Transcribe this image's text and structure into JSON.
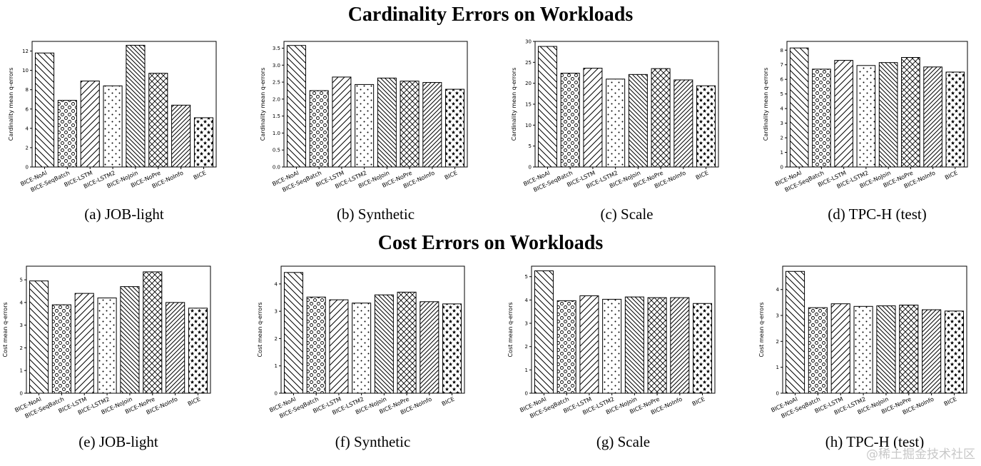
{
  "section_titles": {
    "top": "Cardinality Errors on Workloads",
    "bottom": "Cost Errors on Workloads"
  },
  "watermark": "@稀土掘金技术社区",
  "categories": [
    "BICE-NoAl",
    "BICE-SeqBatch",
    "BICE-LSTM",
    "BICE-LSTM2",
    "BICE-NoJoin",
    "BICE-NoPre",
    "BICE-NoInfo",
    "BICE"
  ],
  "patterns": [
    "backslash",
    "circles",
    "slash",
    "dots",
    "backslash-dense",
    "crosshatch",
    "slash-dense",
    "stars"
  ],
  "chart_data": [
    {
      "type": "bar",
      "caption": "(a)  JOB-light",
      "ylabel": "Cardinality mean q-errors",
      "ylim": [
        0,
        13
      ],
      "yticks": [
        0,
        2,
        4,
        6,
        8,
        10,
        12
      ],
      "tick_decimals": 0,
      "values": [
        11.8,
        6.9,
        8.9,
        8.4,
        12.6,
        9.7,
        6.4,
        5.1
      ]
    },
    {
      "type": "bar",
      "caption": "(b)  Synthetic",
      "ylabel": "Cardinality mean q-errors",
      "ylim": [
        0,
        3.7
      ],
      "yticks": [
        0.0,
        0.5,
        1.0,
        1.5,
        2.0,
        2.5,
        3.0,
        3.5
      ],
      "tick_decimals": 1,
      "values": [
        3.58,
        2.25,
        2.65,
        2.43,
        2.62,
        2.53,
        2.49,
        2.29
      ]
    },
    {
      "type": "bar",
      "caption": "(c)  Scale",
      "ylabel": "Cardinality mean q-errors",
      "ylim": [
        0,
        30
      ],
      "yticks": [
        0,
        5,
        10,
        15,
        20,
        25,
        30
      ],
      "tick_decimals": 0,
      "values": [
        28.8,
        22.4,
        23.6,
        21.0,
        22.1,
        23.5,
        20.8,
        19.4
      ]
    },
    {
      "type": "bar",
      "caption": "(d)  TPC-H (test)",
      "ylabel": "Cardinality mean q-errors",
      "ylim": [
        0,
        8.6
      ],
      "yticks": [
        0,
        1,
        2,
        3,
        4,
        5,
        6,
        7,
        8
      ],
      "tick_decimals": 0,
      "values": [
        8.15,
        6.7,
        7.3,
        6.95,
        7.15,
        7.5,
        6.85,
        6.5
      ]
    },
    {
      "type": "bar",
      "caption": "(e)  JOB-light",
      "ylabel": "Cost mean q-errors",
      "ylim": [
        0,
        5.6
      ],
      "yticks": [
        0,
        1,
        2,
        3,
        4,
        5
      ],
      "tick_decimals": 0,
      "values": [
        4.95,
        3.9,
        4.4,
        4.2,
        4.7,
        5.35,
        4.0,
        3.75
      ]
    },
    {
      "type": "bar",
      "caption": "(f)  Synthetic",
      "ylabel": "Cost mean q-errors",
      "ylim": [
        0,
        4.65
      ],
      "yticks": [
        0,
        1,
        2,
        3,
        4
      ],
      "tick_decimals": 0,
      "values": [
        4.42,
        3.52,
        3.42,
        3.3,
        3.6,
        3.7,
        3.35,
        3.27
      ]
    },
    {
      "type": "bar",
      "caption": "(g)  Scale",
      "ylabel": "Cost mean q-errors",
      "ylim": [
        0,
        5.45
      ],
      "yticks": [
        0,
        1,
        2,
        3,
        4,
        5
      ],
      "tick_decimals": 0,
      "values": [
        5.25,
        3.97,
        4.18,
        4.03,
        4.13,
        4.1,
        4.1,
        3.85
      ]
    },
    {
      "type": "bar",
      "caption": "(h)  TPC-H (test)",
      "ylabel": "Cost mean q-errors",
      "ylim": [
        0,
        4.9
      ],
      "yticks": [
        0,
        1,
        2,
        3,
        4
      ],
      "tick_decimals": 0,
      "values": [
        4.7,
        3.3,
        3.45,
        3.35,
        3.37,
        3.4,
        3.22,
        3.17
      ]
    }
  ]
}
